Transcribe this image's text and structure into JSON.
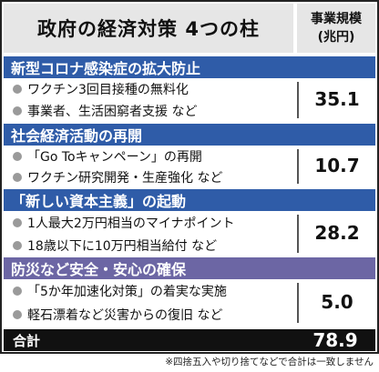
{
  "header": {
    "title": "政府の経済対策 4つの柱",
    "column_label": "事業規模",
    "column_unit": "(兆円)"
  },
  "sections": [
    {
      "heading": "新型コロナ感染症の拡大防止",
      "items": [
        "ワクチン3回目接種の無料化",
        "事業者、生活困窮者支援 など"
      ],
      "value": "35.1"
    },
    {
      "heading": "社会経済活動の再開",
      "items": [
        "「Go Toキャンペーン」の再開",
        "ワクチン研究開発・生産強化 など"
      ],
      "value": "10.7"
    },
    {
      "heading": "「新しい資本主義」の起動",
      "items": [
        "1人最大2万円相当のマイナポイント",
        "18歳以下に10万円相当給付 など"
      ],
      "value": "28.2"
    },
    {
      "heading": "防災など安全・安心の確保",
      "items": [
        "「5か年加速化対策」の着実な実施",
        "軽石漂着など災害からの復旧 など"
      ],
      "value": "5.0"
    }
  ],
  "total": {
    "label": "合計",
    "value": "78.9"
  },
  "footnote": "※四捨五入や切り捨てなどで合計は一致しません"
}
